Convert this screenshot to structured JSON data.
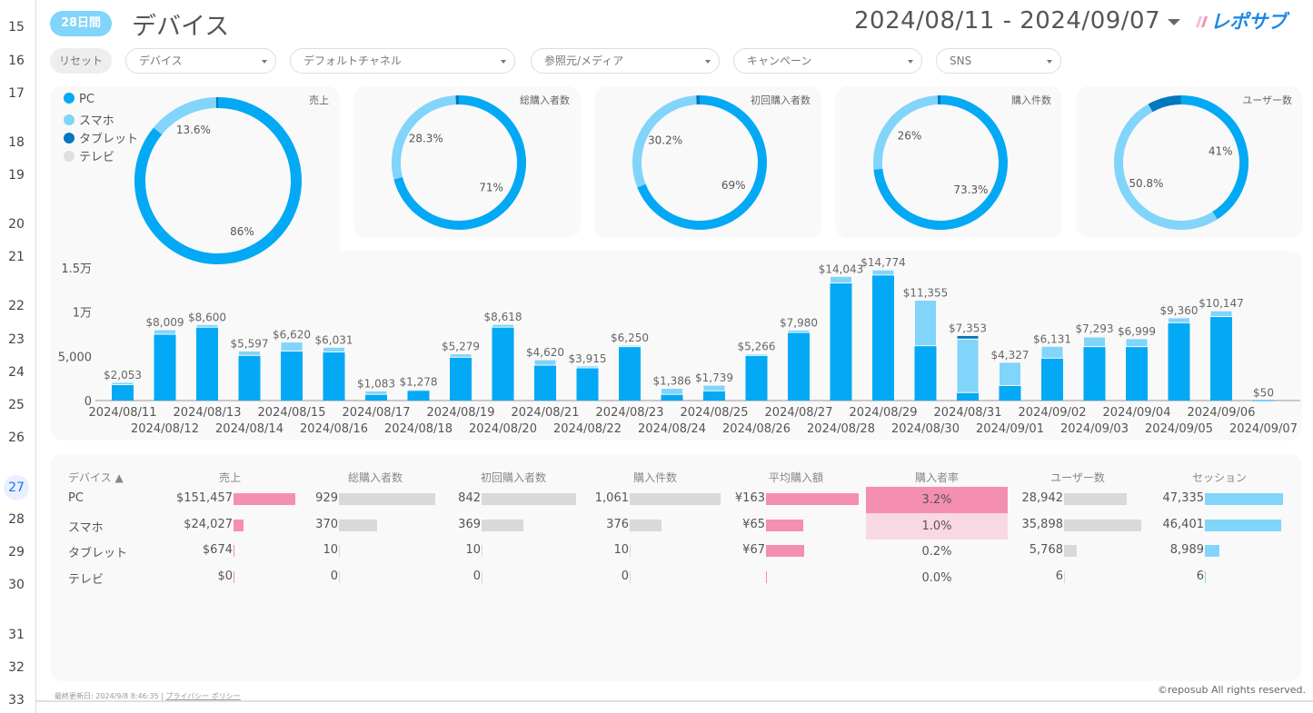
{
  "gutter": {
    "rows": [
      "15",
      "16",
      "17",
      "18",
      "19",
      "20",
      "21",
      "22",
      "23",
      "24",
      "25",
      "26",
      "27",
      "28",
      "29",
      "30",
      "31",
      "32",
      "33"
    ],
    "selected": "27"
  },
  "header": {
    "period_badge": "28日間",
    "title": "デバイス",
    "date_range": "2024/08/11 - 2024/09/07",
    "logo_text": "レポサブ"
  },
  "filters": {
    "reset": "リセット",
    "dropdowns": [
      "デバイス",
      "デフォルトチャネル",
      "参照元/メディア",
      "キャンペーン",
      "SNS"
    ]
  },
  "colors": {
    "PC": "#03a9f4",
    "スマホ": "#81d4fa",
    "タブレット": "#0277bd",
    "テレビ": "#e0e0e0",
    "pink": "#f48fb1",
    "grey_bar": "#d9d9d9",
    "badge": "#81d4fa"
  },
  "legend": [
    "PC",
    "スマホ",
    "タブレット",
    "テレビ"
  ],
  "donuts": [
    {
      "title": "売上",
      "values": [
        151457,
        24027,
        674,
        0
      ],
      "labels": [
        "86%",
        "13.6%"
      ]
    },
    {
      "title": "総購入者数",
      "values": [
        929,
        370,
        10,
        0
      ],
      "labels": [
        "71%",
        "28.3%"
      ]
    },
    {
      "title": "初回購入者数",
      "values": [
        842,
        369,
        10,
        0
      ],
      "labels": [
        "69%",
        "30.2%"
      ]
    },
    {
      "title": "購入件数",
      "values": [
        1061,
        376,
        10,
        0
      ],
      "labels": [
        "73.3%",
        "26%"
      ]
    },
    {
      "title": "ユーザー数",
      "values": [
        28942,
        35898,
        5768,
        6
      ],
      "labels": [
        "41%",
        "50.8%"
      ]
    }
  ],
  "chart_data": {
    "type": "bar",
    "stacked": true,
    "ylim": [
      0,
      15000
    ],
    "yticks": [
      "0",
      "5,000",
      "1万",
      "1.5万"
    ],
    "categories": [
      "2024/08/11",
      "2024/08/12",
      "2024/08/13",
      "2024/08/14",
      "2024/08/15",
      "2024/08/16",
      "2024/08/17",
      "2024/08/18",
      "2024/08/19",
      "2024/08/20",
      "2024/08/21",
      "2024/08/22",
      "2024/08/23",
      "2024/08/24",
      "2024/08/25",
      "2024/08/26",
      "2024/08/27",
      "2024/08/28",
      "2024/08/29",
      "2024/08/30",
      "2024/08/31",
      "2024/09/01",
      "2024/09/02",
      "2024/09/03",
      "2024/09/04",
      "2024/09/05",
      "2024/09/06",
      "2024/09/07"
    ],
    "totals": [
      "$2,053",
      "$8,009",
      "$8,600",
      "$5,597",
      "$6,620",
      "$6,031",
      "$1,083",
      "$1,278",
      "$5,279",
      "$8,618",
      "$4,620",
      "$3,915",
      "$6,250",
      "$1,386",
      "$1,739",
      "$5,266",
      "$7,980",
      "$14,043",
      "$14,774",
      "$11,355",
      "$7,353",
      "$4,327",
      "$6,131",
      "$7,293",
      "$6,999",
      "$9,360",
      "$10,147",
      "$50"
    ],
    "series": [
      {
        "name": "PC",
        "values": [
          1800,
          7500,
          8300,
          5100,
          5600,
          5500,
          700,
          1150,
          4900,
          8300,
          4000,
          3700,
          6100,
          700,
          1100,
          5100,
          7700,
          13300,
          14200,
          6200,
          900,
          1700,
          4800,
          6100,
          6100,
          8800,
          9500,
          50
        ]
      },
      {
        "name": "スマホ",
        "values": [
          253,
          509,
          300,
          497,
          1020,
          531,
          383,
          128,
          379,
          318,
          620,
          215,
          150,
          686,
          639,
          166,
          280,
          743,
          574,
          5155,
          6053,
          2627,
          1331,
          1093,
          899,
          560,
          647,
          0
        ]
      },
      {
        "name": "タブレット",
        "values": [
          0,
          0,
          0,
          0,
          0,
          0,
          0,
          0,
          0,
          0,
          0,
          0,
          0,
          0,
          0,
          0,
          0,
          0,
          0,
          0,
          400,
          0,
          0,
          100,
          0,
          0,
          0,
          0
        ]
      }
    ]
  },
  "table": {
    "headers": [
      "デバイス ▲",
      "売上",
      "総購入者数",
      "初回購入者数",
      "購入件数",
      "平均購入額",
      "購入者率",
      "ユーザー数",
      "セッション"
    ],
    "rows": [
      {
        "device": "PC",
        "sales": "$151,457",
        "buyers": "929",
        "first_buyers": "842",
        "orders": "1,061",
        "avg": "¥163",
        "rate": "3.2%",
        "users": "28,942",
        "sessions": "47,335"
      },
      {
        "device": "スマホ",
        "sales": "$24,027",
        "buyers": "370",
        "first_buyers": "369",
        "orders": "376",
        "avg": "¥65",
        "rate": "1.0%",
        "users": "35,898",
        "sessions": "46,401"
      },
      {
        "device": "タブレット",
        "sales": "$674",
        "buyers": "10",
        "first_buyers": "10",
        "orders": "10",
        "avg": "¥67",
        "rate": "0.2%",
        "users": "5,768",
        "sessions": "8,989"
      },
      {
        "device": "テレビ",
        "sales": "$0",
        "buyers": "0",
        "first_buyers": "0",
        "orders": "0",
        "avg": "",
        "rate": "0.0%",
        "users": "6",
        "sessions": "6"
      }
    ],
    "bar_values": {
      "sales": [
        151457,
        24027,
        674,
        0
      ],
      "buyers": [
        929,
        370,
        10,
        0
      ],
      "first_buyers": [
        842,
        369,
        10,
        0
      ],
      "orders": [
        1061,
        376,
        10,
        0
      ],
      "avg": [
        163,
        65,
        67,
        0
      ],
      "rate": [
        3.2,
        1.0,
        0.2,
        0.0
      ],
      "users": [
        28942,
        35898,
        5768,
        6
      ],
      "sessions": [
        47335,
        46401,
        8989,
        6
      ]
    }
  },
  "footer": {
    "updated": "最終更新日: 2024/9/8 8:46:35",
    "privacy": "プライバシー ポリシー",
    "copyright": "©reposub All rights reserved."
  }
}
